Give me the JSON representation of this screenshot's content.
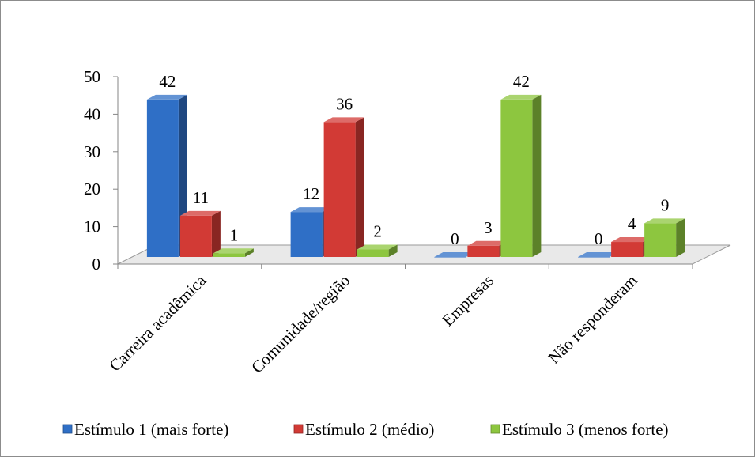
{
  "chart_data": {
    "type": "bar",
    "categories": [
      "Carreira acadêmica",
      "Comunidade/região",
      "Empresas",
      "Não responderam"
    ],
    "series": [
      {
        "name": "Estímulo 1 (mais forte)",
        "values": [
          42,
          12,
          0,
          0
        ],
        "color": "#2f6fc6"
      },
      {
        "name": "Estímulo 2 (médio)",
        "values": [
          11,
          36,
          3,
          4
        ],
        "color": "#d23a35"
      },
      {
        "name": "Estímulo 3 (menos forte)",
        "values": [
          1,
          2,
          42,
          9
        ],
        "color": "#8dc63f"
      }
    ],
    "y_ticks": [
      "0",
      "10",
      "20",
      "30",
      "40",
      "50"
    ],
    "ylim": [
      0,
      50
    ],
    "legend_position": "bottom",
    "grid": false,
    "style": "3d-clustered-column"
  }
}
